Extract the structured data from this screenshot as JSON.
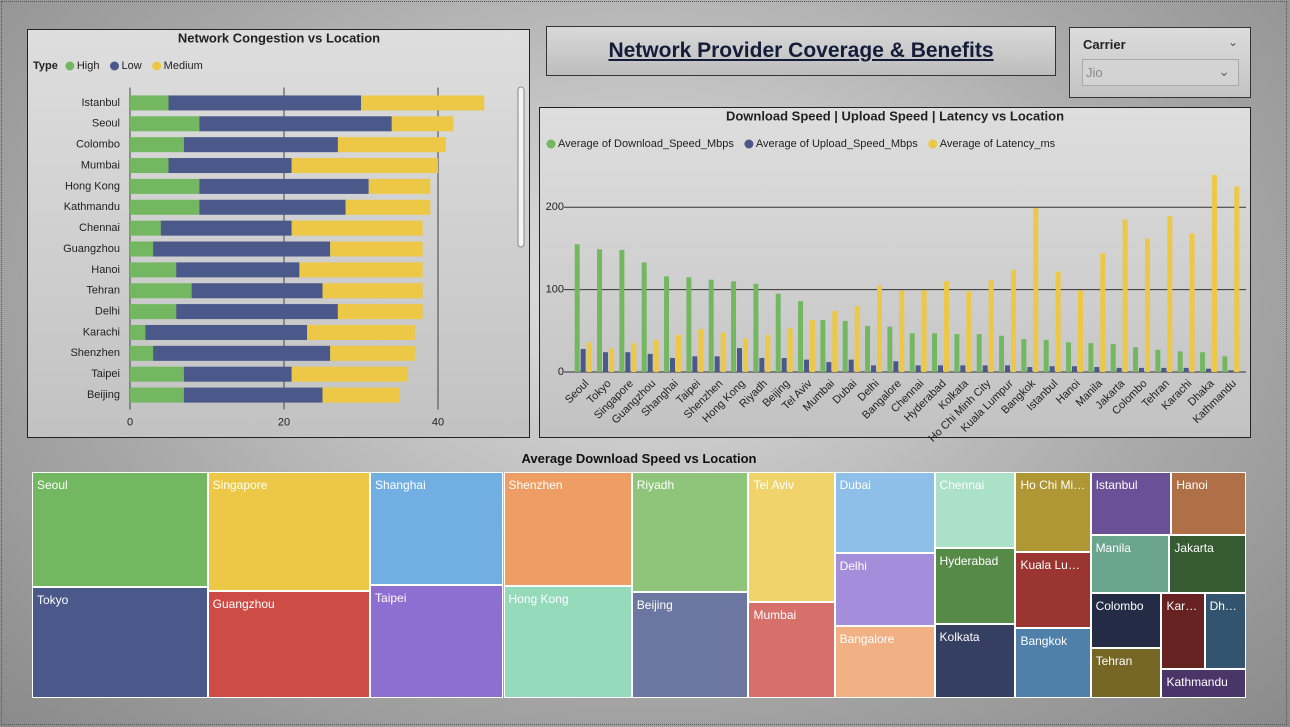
{
  "header": {
    "title": "Network Provider Coverage & Benefits"
  },
  "slicer": {
    "label": "Carrier",
    "selected": "Jio"
  },
  "chart_data": [
    {
      "type": "bar",
      "orientation": "horizontal",
      "stacked": true,
      "title": "Network Congestion vs Location",
      "legend_title": "Type",
      "categories": [
        "Istanbul",
        "Seoul",
        "Colombo",
        "Mumbai",
        "Hong Kong",
        "Kathmandu",
        "Chennai",
        "Guangzhou",
        "Hanoi",
        "Tehran",
        "Delhi",
        "Karachi",
        "Shenzhen",
        "Taipei",
        "Beijing"
      ],
      "series": [
        {
          "name": "High",
          "color": "#73b761",
          "values": [
            5,
            9,
            7,
            5,
            9,
            9,
            4,
            3,
            6,
            8,
            6,
            2,
            3,
            7,
            7
          ]
        },
        {
          "name": "Low",
          "color": "#4a588a",
          "values": [
            25,
            25,
            20,
            16,
            22,
            19,
            17,
            23,
            16,
            17,
            21,
            21,
            23,
            14,
            18
          ]
        },
        {
          "name": "Medium",
          "color": "#ecc846",
          "values": [
            16,
            8,
            14,
            19,
            8,
            11,
            17,
            12,
            16,
            13,
            11,
            14,
            11,
            15,
            10
          ]
        }
      ],
      "xlim": [
        0,
        50
      ],
      "xticks": [
        0,
        20,
        40
      ],
      "grid": true
    },
    {
      "type": "bar",
      "orientation": "vertical",
      "stacked": false,
      "title": "Download Speed | Upload Speed | Latency vs Location",
      "categories": [
        "Seoul",
        "Tokyo",
        "Singapore",
        "Guangzhou",
        "Shanghai",
        "Taipei",
        "Shenzhen",
        "Hong Kong",
        "Riyadh",
        "Beijing",
        "Tel Aviv",
        "Mumbai",
        "Dubai",
        "Delhi",
        "Bangalore",
        "Chennai",
        "Hyderabad",
        "Kolkata",
        "Ho Chi Minh City",
        "Kuala Lumpur",
        "Bangkok",
        "Istanbul",
        "Hanoi",
        "Manila",
        "Jakarta",
        "Colombo",
        "Tehran",
        "Karachi",
        "Dhaka",
        "Kathmandu"
      ],
      "series": [
        {
          "name": "Average of Download_Speed_Mbps",
          "color": "#73b761",
          "values": [
            155,
            149,
            148,
            133,
            116,
            115,
            112,
            110,
            107,
            95,
            86,
            63,
            62,
            56,
            55,
            47,
            47,
            46,
            46,
            44,
            40,
            39,
            36,
            35,
            34,
            30,
            27,
            25,
            24,
            19
          ]
        },
        {
          "name": "Average of Upload_Speed_Mbps",
          "color": "#4a588a",
          "values": [
            28,
            24,
            24,
            22,
            17,
            19,
            19,
            29,
            17,
            17,
            15,
            12,
            15,
            8,
            13,
            8,
            8,
            8,
            8,
            8,
            6,
            7,
            7,
            6,
            5,
            5,
            5,
            5,
            4,
            2
          ]
        },
        {
          "name": "Average of Latency_ms",
          "color": "#ecc846",
          "values": [
            36,
            29,
            35,
            39,
            45,
            52,
            48,
            41,
            45,
            53,
            63,
            74,
            80,
            105,
            99,
            99,
            110,
            98,
            111,
            124,
            199,
            122,
            99,
            144,
            185,
            162,
            189,
            168,
            239,
            225
          ]
        }
      ],
      "ylim": [
        0,
        250
      ],
      "yticks": [
        0,
        100,
        200
      ],
      "grid": true
    },
    {
      "type": "treemap",
      "title": "Average Download Speed vs Location",
      "categories": [
        "Seoul",
        "Tokyo",
        "Singapore",
        "Guangzhou",
        "Shanghai",
        "Taipei",
        "Shenzhen",
        "Hong Kong",
        "Riyadh",
        "Beijing",
        "Tel Aviv",
        "Mumbai",
        "Dubai",
        "Delhi",
        "Bangalore",
        "Chennai",
        "Hyderabad",
        "Kolkata",
        "Ho Chi Minh City",
        "Kuala Lumpur",
        "Bangkok",
        "Istanbul",
        "Hanoi",
        "Manila",
        "Jakarta",
        "Colombo",
        "Tehran",
        "Karachi",
        "Dhaka",
        "Kathmandu"
      ],
      "values": [
        155,
        149,
        148,
        133,
        116,
        115,
        112,
        110,
        107,
        95,
        86,
        63,
        62,
        56,
        55,
        47,
        47,
        46,
        46,
        44,
        40,
        39,
        36,
        35,
        34,
        30,
        27,
        25,
        24,
        19
      ],
      "colors": [
        "#73b761",
        "#4a588a",
        "#ecc846",
        "#cd4c46",
        "#71afe2",
        "#8d6fd1",
        "#ee9e64",
        "#95dabb",
        "#8fc57a",
        "#6b77a1",
        "#f0d36b",
        "#d7706b",
        "#8dbfe9",
        "#a48ddb",
        "#f2b184",
        "#aae1c8",
        "#568a47",
        "#343f62",
        "#b09735",
        "#9a3531",
        "#4f80aa",
        "#6a5097",
        "#b07047",
        "#6ba58e",
        "#365b33",
        "#232b45",
        "#756625",
        "#672321",
        "#33546f",
        "#4a3569"
      ]
    }
  ]
}
